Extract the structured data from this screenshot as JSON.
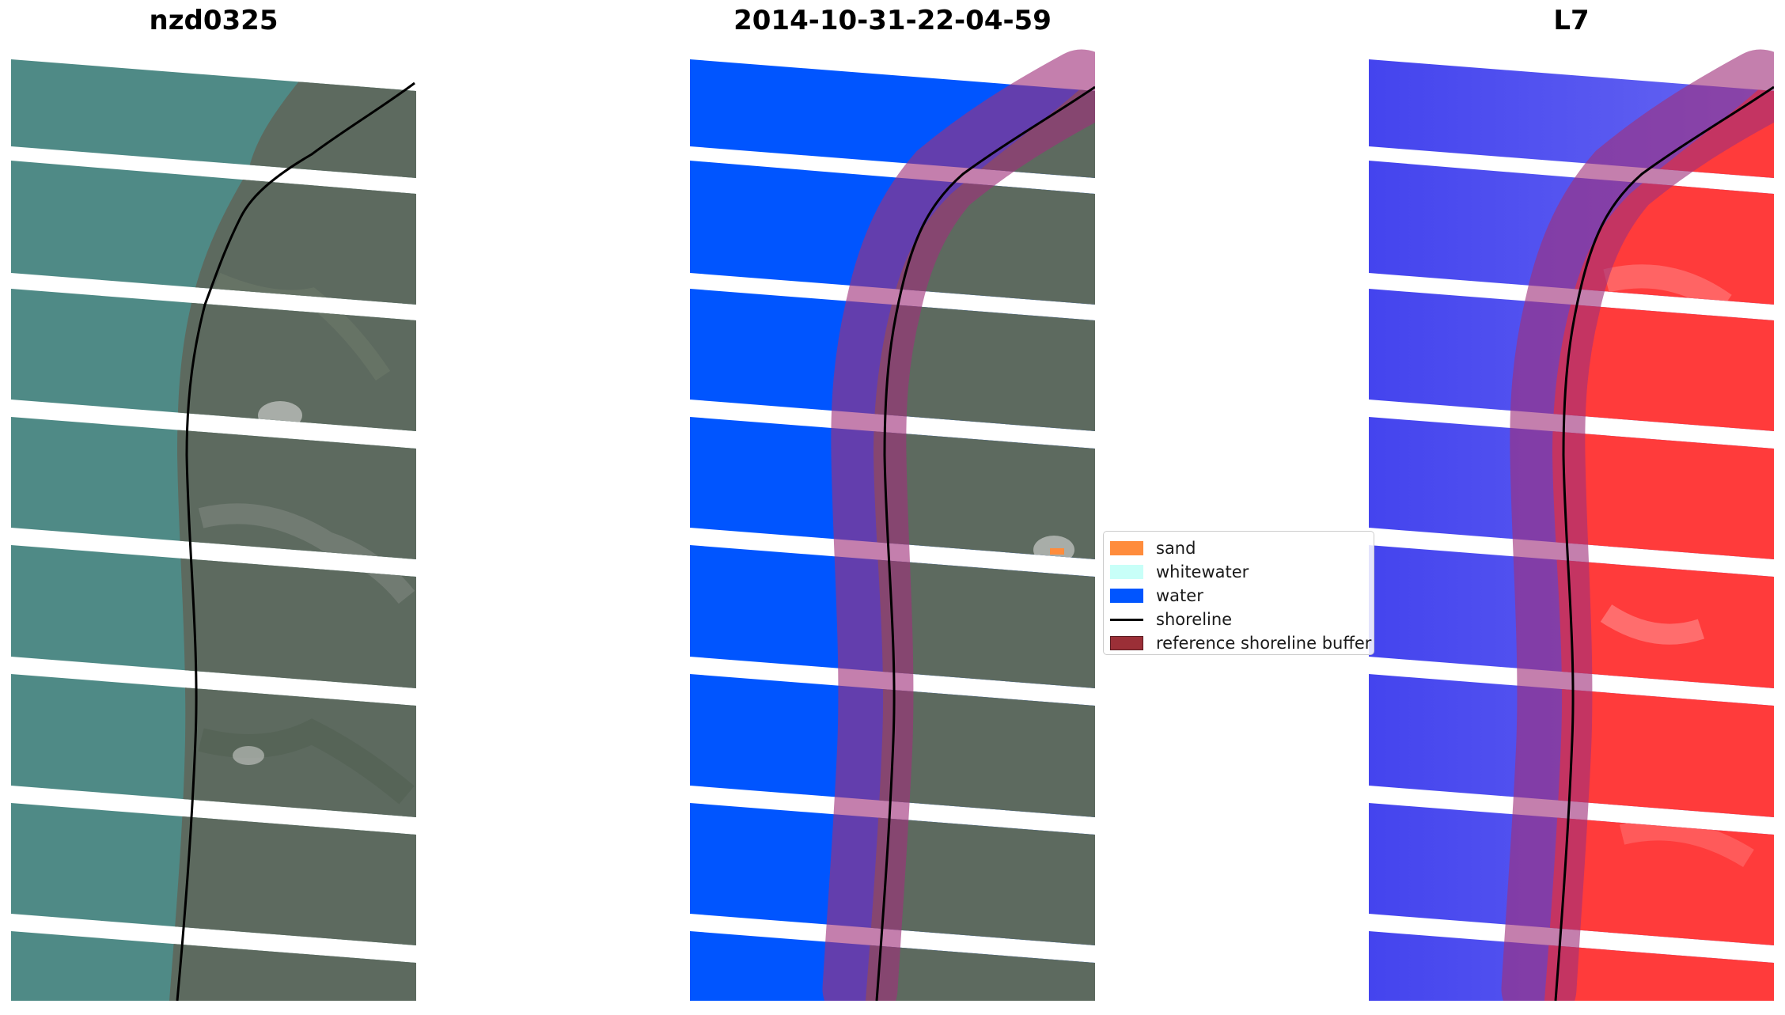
{
  "panels": [
    {
      "title": "nzd0325"
    },
    {
      "title": "2014-10-31-22-04-59"
    },
    {
      "title": "L7"
    }
  ],
  "legend": {
    "items": [
      {
        "label": "sand",
        "color": "#ff8c3c",
        "kind": "patch"
      },
      {
        "label": "whitewater",
        "color": "#c8fff8",
        "kind": "patch"
      },
      {
        "label": "water",
        "color": "#0055ff",
        "kind": "patch"
      },
      {
        "label": "shoreline",
        "color": "#000000",
        "kind": "line"
      },
      {
        "label": "reference shoreline buffer",
        "color": "#9b2f37",
        "kind": "patch"
      }
    ]
  },
  "colors": {
    "rgb_sea": "#4f8a86",
    "rgb_land": "#5d6a5f",
    "water_class": "#0055ff",
    "index_water": "#3a3af0",
    "index_land": "#ff3030",
    "buffer": "#a0307a"
  }
}
